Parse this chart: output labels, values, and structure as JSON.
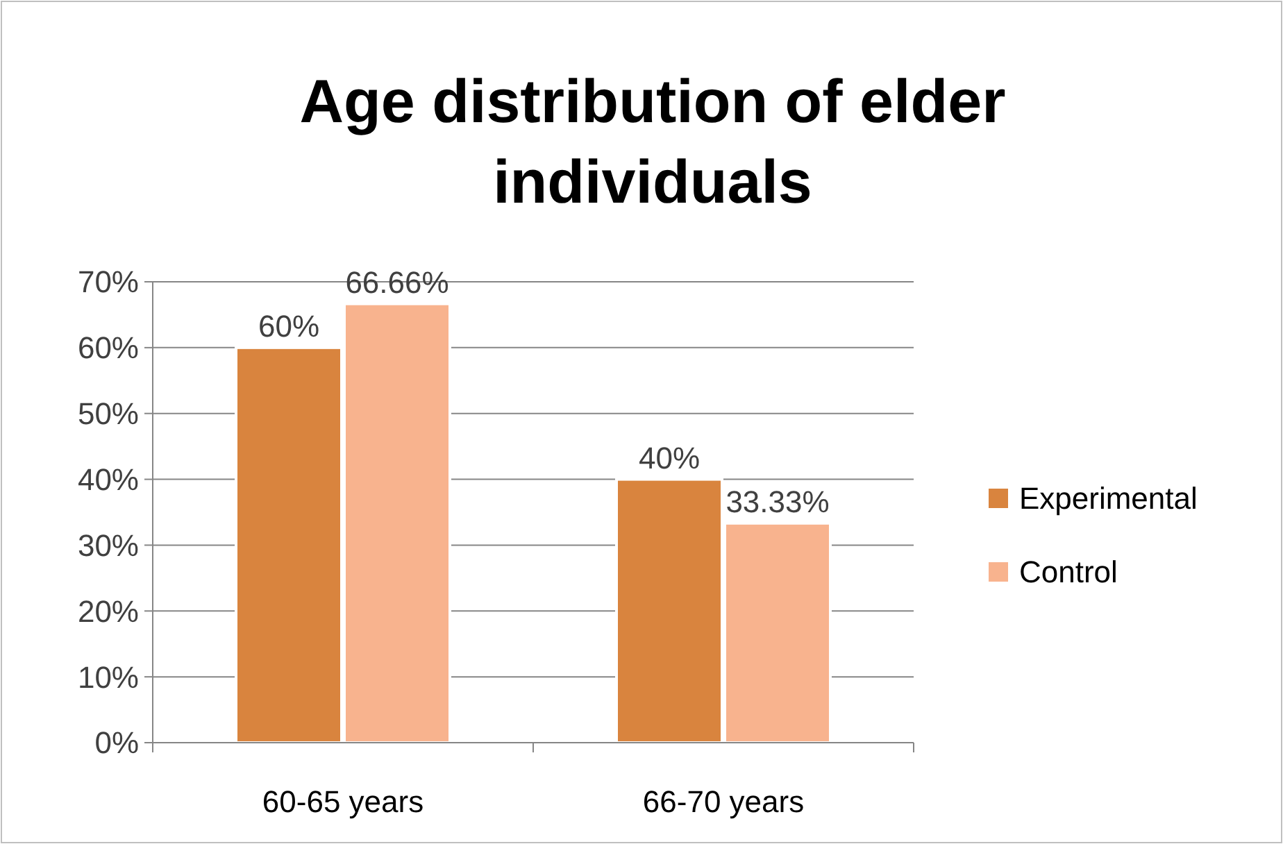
{
  "chart_data": {
    "type": "bar",
    "title": "Age distribution of elder individuals",
    "categories": [
      "60-65 years",
      "66-70 years"
    ],
    "series": [
      {
        "name": "Experimental",
        "color": "#d9843e",
        "values": [
          60,
          40
        ],
        "value_labels": [
          "60%",
          "40%"
        ]
      },
      {
        "name": "Control",
        "color": "#f8b38e",
        "values": [
          66.66,
          33.33
        ],
        "value_labels": [
          "66.66%",
          "33.33%"
        ]
      }
    ],
    "ylim": [
      0,
      70
    ],
    "yticks": [
      {
        "value": 0,
        "label": "0%"
      },
      {
        "value": 10,
        "label": "10%"
      },
      {
        "value": 20,
        "label": "20%"
      },
      {
        "value": 30,
        "label": "30%"
      },
      {
        "value": 40,
        "label": "40%"
      },
      {
        "value": 50,
        "label": "50%"
      },
      {
        "value": 60,
        "label": "60%"
      },
      {
        "value": 70,
        "label": "70%"
      }
    ],
    "grid": "y",
    "legend": "right"
  }
}
